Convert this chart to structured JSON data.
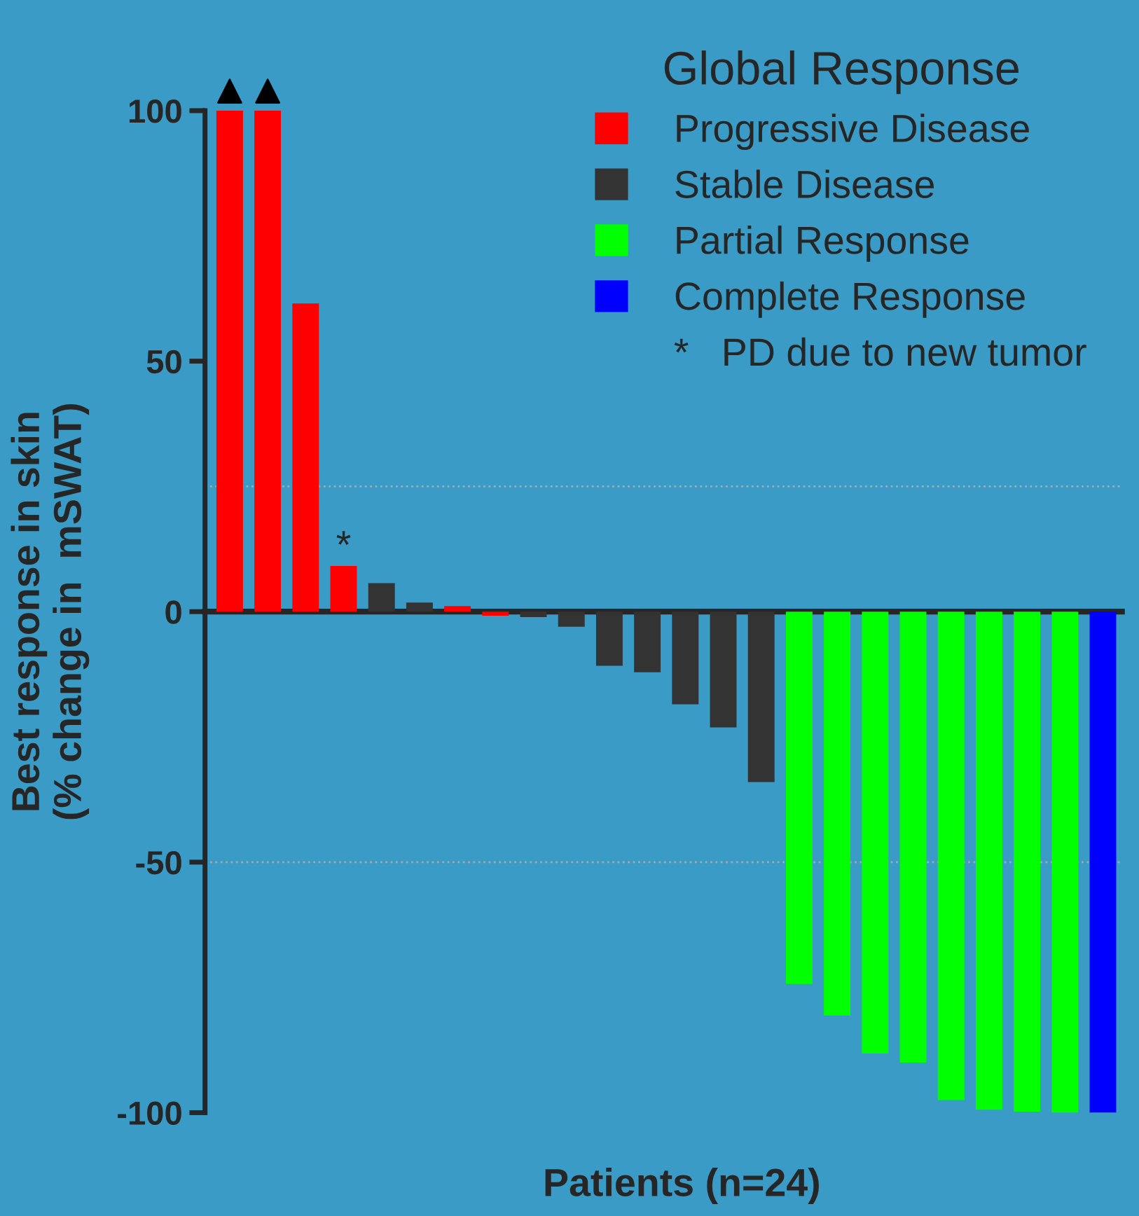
{
  "chart_data": {
    "type": "bar",
    "ylabel": "Best response in skin\n(% change in  mSWAT)",
    "xlabel": "Patients (n=24)",
    "legend_title": "Global Response",
    "categories": [
      null,
      null,
      null,
      null,
      null,
      null,
      null,
      null,
      null,
      null,
      null,
      null,
      null,
      null,
      null,
      null,
      null,
      null,
      null,
      null,
      null,
      null,
      null,
      null
    ],
    "series": [
      {
        "name": "Progressive Disease",
        "color": "#ff0000",
        "values": [
          100,
          100,
          61.5,
          9.1,
          null,
          null,
          1.1,
          -0.8,
          null,
          null,
          null,
          null,
          null,
          null,
          null,
          null,
          null,
          null,
          null,
          null,
          null,
          null,
          null,
          null
        ],
        "value_labels": [
          null,
          null,
          null,
          "*",
          null,
          null,
          null,
          null,
          null,
          null,
          null,
          null,
          null,
          null,
          null,
          null,
          null,
          null,
          null,
          null,
          null,
          null,
          null,
          null
        ]
      },
      {
        "name": "Stable Disease",
        "color": "#333333",
        "values": [
          null,
          null,
          null,
          null,
          5.7,
          1.8,
          null,
          null,
          -1.1,
          -3.0,
          -10.8,
          -12.1,
          -18.5,
          -23.1,
          -34.0,
          null,
          null,
          null,
          null,
          null,
          null,
          null,
          null,
          null
        ]
      },
      {
        "name": "Partial Response",
        "color": "#00ff00",
        "values": [
          null,
          null,
          null,
          null,
          null,
          null,
          null,
          null,
          null,
          null,
          null,
          null,
          null,
          null,
          null,
          -74.3,
          -80.6,
          -88.2,
          -90.0,
          -97.5,
          -99.4,
          -99.8,
          -100,
          null
        ]
      },
      {
        "name": "Complete Response",
        "color": "#0000ff",
        "values": [
          null,
          null,
          null,
          null,
          null,
          null,
          null,
          null,
          null,
          null,
          null,
          null,
          null,
          null,
          null,
          null,
          null,
          null,
          null,
          null,
          null,
          null,
          null,
          -100
        ]
      }
    ],
    "annotations": [
      "*   PD due to new tumor"
    ],
    "ylim": [
      -100,
      100
    ],
    "yticks": [
      -100,
      -50,
      0,
      50,
      100
    ],
    "ref_lines": [
      {
        "axis": "y",
        "value": 25,
        "color": "#a8a8a8",
        "line_style": "dotted"
      },
      {
        "axis": "y",
        "value": -50,
        "color": "#a8a8a8",
        "line_style": "dotted"
      }
    ],
    "tick_labels": "y",
    "grid": false,
    "legend": "top right"
  }
}
